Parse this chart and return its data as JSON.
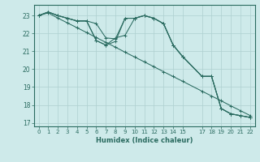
{
  "xlabel": "Humidex (Indice chaleur)",
  "bg_color": "#ceeaea",
  "line_color": "#2a6b60",
  "grid_color": "#aed0d0",
  "xlim": [
    -0.5,
    22.5
  ],
  "ylim": [
    16.8,
    23.6
  ],
  "yticks": [
    17,
    18,
    19,
    20,
    21,
    22,
    23
  ],
  "xticks": [
    0,
    1,
    2,
    3,
    4,
    5,
    6,
    7,
    8,
    9,
    10,
    11,
    12,
    13,
    14,
    15,
    17,
    18,
    19,
    20,
    21,
    22
  ],
  "series": [
    {
      "x": [
        0,
        1,
        2,
        3,
        4,
        5,
        6,
        7,
        8,
        9,
        10,
        11,
        12,
        13,
        14,
        15,
        17,
        18,
        19,
        20,
        21,
        22
      ],
      "y": [
        23.0,
        23.15,
        22.86,
        22.59,
        22.32,
        22.05,
        21.77,
        21.5,
        21.23,
        20.95,
        20.68,
        20.41,
        20.14,
        19.86,
        19.59,
        19.32,
        18.77,
        18.5,
        18.23,
        17.95,
        17.68,
        17.41
      ]
    },
    {
      "x": [
        0,
        1,
        2,
        3,
        4,
        5,
        6,
        7,
        8,
        9,
        10,
        11,
        12,
        13,
        14,
        15,
        17,
        18,
        19,
        20,
        21,
        22
      ],
      "y": [
        23.0,
        23.2,
        23.0,
        22.85,
        22.7,
        22.7,
        21.6,
        21.35,
        21.55,
        22.85,
        22.85,
        23.0,
        22.85,
        22.55,
        21.35,
        20.7,
        19.6,
        19.6,
        17.8,
        17.5,
        17.4,
        17.3
      ]
    },
    {
      "x": [
        0,
        1,
        2,
        3,
        4,
        5,
        6,
        7,
        8,
        9,
        10,
        11,
        12,
        13,
        14,
        15,
        17,
        18,
        19,
        20,
        21,
        22
      ],
      "y": [
        23.0,
        23.2,
        23.0,
        22.85,
        22.7,
        22.7,
        22.55,
        21.75,
        21.7,
        22.85,
        22.85,
        23.0,
        22.85,
        22.55,
        21.35,
        20.7,
        19.6,
        19.6,
        17.8,
        17.5,
        17.4,
        17.3
      ]
    },
    {
      "x": [
        0,
        1,
        2,
        3,
        4,
        5,
        6,
        7,
        8,
        9,
        10,
        11,
        12,
        13,
        14,
        15,
        17,
        18,
        19,
        20,
        21,
        22
      ],
      "y": [
        23.0,
        23.2,
        23.0,
        22.85,
        22.7,
        22.7,
        21.6,
        21.35,
        21.75,
        21.9,
        22.85,
        23.0,
        22.85,
        22.55,
        21.35,
        20.7,
        19.6,
        19.6,
        17.8,
        17.5,
        17.4,
        17.3
      ]
    }
  ]
}
